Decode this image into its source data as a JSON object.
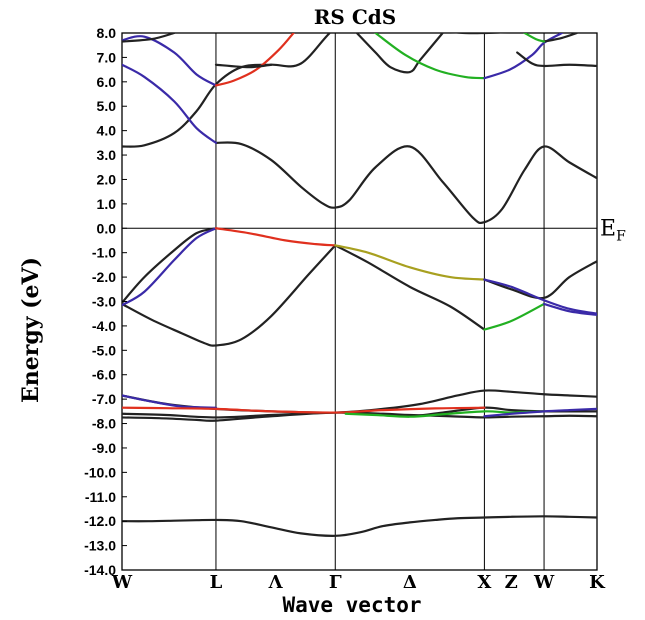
{
  "chart_data": {
    "type": "line",
    "title": "RS  CdS",
    "xlabel": "Wave vector",
    "ylabel": "Energy (eV)",
    "ylim": [
      -14.0,
      8.0
    ],
    "yticks": [
      8.0,
      7.0,
      6.0,
      5.0,
      4.0,
      3.0,
      2.0,
      1.0,
      0.0,
      -1.0,
      -2.0,
      -3.0,
      -4.0,
      -5.0,
      -6.0,
      -7.0,
      -8.0,
      -9.0,
      -10.0,
      -11.0,
      -12.0,
      -13.0,
      -14.0
    ],
    "ytick_labels": [
      "8.0",
      "7.0",
      "6.0",
      "5.0",
      "4.0",
      "3.0",
      "2.0",
      "1.0",
      "0.0",
      "-1.0",
      "-2.0",
      "-3.0",
      "-4.0",
      "-5.0",
      "-6.0",
      "-7.0",
      "-8.0",
      "-9.0",
      "-10.0",
      "-11.0",
      "-12.0",
      "-13.0",
      "-14.0"
    ],
    "xlim": [
      0,
      6.37
    ],
    "kpoints": [
      {
        "label": "W",
        "x": 0.0
      },
      {
        "label": "L",
        "x": 1.26,
        "line": true
      },
      {
        "label": "Λ",
        "x": 2.06
      },
      {
        "label": "Γ",
        "x": 2.86,
        "line": true
      },
      {
        "label": "Δ",
        "x": 3.86
      },
      {
        "label": "X",
        "x": 4.86,
        "line": true
      },
      {
        "label": "Z",
        "x": 5.22
      },
      {
        "label": "W",
        "x": 5.66,
        "line": true
      },
      {
        "label": "K",
        "x": 6.37
      }
    ],
    "fermi_level": 0.0,
    "fermi_label": {
      "main": "E",
      "sub": "F"
    },
    "grid": false,
    "colors": {
      "black": "#222222",
      "blue": "#3a2aa8",
      "red": "#e0301e",
      "green": "#22b022",
      "olive": "#a8a020"
    },
    "series": [
      {
        "color": "black",
        "x": [
          0,
          0.35,
          0.7,
          1.0,
          1.26,
          1.6,
          2.0,
          2.4,
          2.86,
          3.2,
          3.5,
          3.86,
          4.2,
          4.5,
          4.86,
          5.22,
          5.66,
          6.0,
          6.37
        ],
        "y": [
          -12.0,
          -12.0,
          -11.98,
          -11.96,
          -11.95,
          -12.0,
          -12.25,
          -12.5,
          -12.6,
          -12.45,
          -12.2,
          -12.05,
          -11.95,
          -11.88,
          -11.85,
          -11.82,
          -11.8,
          -11.82,
          -11.85
        ]
      },
      {
        "color": "black",
        "x": [
          0,
          0.5,
          1.0,
          1.26,
          2.0,
          2.86,
          3.5,
          3.86,
          4.4,
          4.86,
          5.22,
          5.66,
          6.0,
          6.37
        ],
        "y": [
          -7.75,
          -7.78,
          -7.85,
          -7.88,
          -7.7,
          -7.55,
          -7.6,
          -7.65,
          -7.7,
          -7.75,
          -7.72,
          -7.7,
          -7.68,
          -7.7
        ]
      },
      {
        "color": "black",
        "x": [
          0,
          0.6,
          1.26,
          2.0,
          2.86,
          3.5,
          4.0,
          4.5,
          4.86,
          5.22,
          5.66,
          6.0,
          6.37
        ],
        "y": [
          -6.85,
          -7.2,
          -7.4,
          -7.5,
          -7.55,
          -7.4,
          -7.2,
          -6.85,
          -6.65,
          -6.7,
          -6.8,
          -6.85,
          -6.9
        ]
      },
      {
        "color": "black",
        "x": [
          0,
          0.6,
          1.26,
          2.0,
          2.86,
          3.5,
          3.86,
          4.3,
          4.86,
          5.22,
          5.66,
          6.0,
          6.37
        ],
        "y": [
          -7.6,
          -7.65,
          -7.75,
          -7.65,
          -7.55,
          -7.62,
          -7.7,
          -7.55,
          -7.35,
          -7.45,
          -7.5,
          -7.5,
          -7.5
        ]
      },
      {
        "color": "blue",
        "x": [
          0,
          0.4,
          0.8,
          1.26
        ],
        "y": [
          -6.85,
          -7.1,
          -7.3,
          -7.35
        ]
      },
      {
        "color": "red",
        "x": [
          0,
          0.6,
          1.26,
          2.0,
          2.86,
          3.5,
          4.2,
          4.86
        ],
        "y": [
          -7.35,
          -7.37,
          -7.4,
          -7.5,
          -7.55,
          -7.45,
          -7.38,
          -7.35
        ]
      },
      {
        "color": "green",
        "x": [
          3.0,
          3.4,
          3.86,
          4.3,
          4.86,
          5.22,
          5.66
        ],
        "y": [
          -7.6,
          -7.65,
          -7.72,
          -7.62,
          -7.5,
          -7.55,
          -7.5
        ]
      },
      {
        "color": "blue",
        "x": [
          4.86,
          5.22,
          5.66,
          6.0,
          6.37
        ],
        "y": [
          -7.7,
          -7.6,
          -7.5,
          -7.45,
          -7.4
        ]
      },
      {
        "color": "black",
        "x": [
          0,
          0.4,
          0.8,
          1.1,
          1.26,
          1.6,
          2.0,
          2.5,
          2.86
        ],
        "y": [
          -3.1,
          -3.75,
          -4.3,
          -4.7,
          -4.8,
          -4.55,
          -3.6,
          -1.9,
          -0.7
        ]
      },
      {
        "color": "black",
        "x": [
          0,
          0.3,
          0.7,
          1.0,
          1.26
        ],
        "y": [
          -3.05,
          -2.0,
          -0.9,
          -0.2,
          0.0
        ]
      },
      {
        "color": "blue",
        "x": [
          0,
          0.3,
          0.7,
          1.0,
          1.26
        ],
        "y": [
          -3.15,
          -2.6,
          -1.3,
          -0.4,
          0.0
        ]
      },
      {
        "color": "red",
        "x": [
          1.26,
          1.7,
          2.2,
          2.6,
          2.86
        ],
        "y": [
          0.0,
          -0.2,
          -0.5,
          -0.65,
          -0.7
        ]
      },
      {
        "color": "black",
        "x": [
          2.86,
          3.3,
          3.86,
          4.4,
          4.86
        ],
        "y": [
          -0.7,
          -1.4,
          -2.4,
          -3.2,
          -4.15
        ]
      },
      {
        "color": "olive",
        "x": [
          2.86,
          3.3,
          3.86,
          4.4,
          4.86
        ],
        "y": [
          -0.7,
          -1.0,
          -1.6,
          -2.0,
          -2.1
        ]
      },
      {
        "color": "green",
        "x": [
          4.86,
          5.22,
          5.66
        ],
        "y": [
          -4.15,
          -3.8,
          -3.1
        ]
      },
      {
        "color": "black",
        "x": [
          4.86,
          5.22,
          5.66,
          6.0,
          6.37
        ],
        "y": [
          -2.1,
          -2.5,
          -2.85,
          -2.0,
          -1.35
        ]
      },
      {
        "color": "blue",
        "x": [
          4.86,
          5.22,
          5.66,
          6.0,
          6.37
        ],
        "y": [
          -2.1,
          -2.4,
          -2.95,
          -3.3,
          -3.5
        ]
      },
      {
        "color": "blue",
        "x": [
          5.66,
          6.0,
          6.37
        ],
        "y": [
          -3.1,
          -3.4,
          -3.55
        ]
      },
      {
        "color": "black",
        "x": [
          0,
          0.3,
          0.7,
          1.0,
          1.26,
          1.6,
          2.0,
          2.4,
          2.86,
          3.2,
          3.5,
          3.86,
          4.2,
          4.6,
          4.86,
          5.22,
          5.66,
          6.0,
          6.37
        ],
        "y": [
          3.35,
          3.4,
          3.9,
          4.8,
          5.9,
          6.6,
          6.7,
          6.75,
          8.2,
          8.3,
          8.3,
          8.2,
          8.1,
          8.0,
          8.0,
          8.05,
          8.2,
          8.2,
          8.2
        ]
      },
      {
        "color": "black",
        "x": [
          1.26,
          1.6,
          2.0,
          2.4,
          2.7,
          2.86,
          3.05,
          3.4,
          3.86,
          4.3,
          4.7,
          4.86,
          5.1,
          5.4,
          5.66,
          6.0,
          6.37
        ],
        "y": [
          3.5,
          3.45,
          2.8,
          1.7,
          1.0,
          0.85,
          1.15,
          2.5,
          3.35,
          1.9,
          0.45,
          0.25,
          0.8,
          2.4,
          3.35,
          2.7,
          2.05
        ]
      },
      {
        "color": "blue",
        "x": [
          0,
          0.3,
          0.7,
          1.0,
          1.26
        ],
        "y": [
          6.7,
          6.2,
          5.2,
          4.1,
          3.5
        ]
      },
      {
        "color": "blue",
        "x": [
          0,
          0.3,
          0.7,
          1.0,
          1.26
        ],
        "y": [
          7.7,
          7.85,
          7.2,
          6.3,
          5.85
        ]
      },
      {
        "color": "black",
        "x": [
          0,
          0.4,
          0.7
        ],
        "y": [
          7.65,
          7.75,
          8.0
        ]
      },
      {
        "color": "red",
        "x": [
          1.26,
          1.5,
          1.8,
          2.1,
          2.3
        ],
        "y": [
          5.85,
          6.05,
          6.5,
          7.3,
          8.0
        ]
      },
      {
        "color": "black",
        "x": [
          1.26,
          1.7,
          2.0
        ],
        "y": [
          6.7,
          6.6,
          6.7
        ]
      },
      {
        "color": "black",
        "x": [
          3.15,
          3.4,
          3.6,
          3.86,
          4.0,
          4.3
        ],
        "y": [
          8.0,
          7.2,
          6.6,
          6.4,
          6.9,
          8.0
        ]
      },
      {
        "color": "green",
        "x": [
          3.4,
          3.8,
          4.2,
          4.6,
          4.86
        ],
        "y": [
          8.0,
          7.1,
          6.5,
          6.2,
          6.15
        ]
      },
      {
        "color": "blue",
        "x": [
          4.86,
          5.2,
          5.5,
          5.66,
          5.9
        ],
        "y": [
          6.15,
          6.5,
          7.1,
          7.6,
          8.0
        ]
      },
      {
        "color": "black",
        "x": [
          5.3,
          5.5,
          5.66,
          6.0,
          6.37
        ],
        "y": [
          7.2,
          6.75,
          6.65,
          6.7,
          6.65
        ]
      },
      {
        "color": "black",
        "x": [
          5.66,
          5.9,
          6.1
        ],
        "y": [
          7.65,
          7.8,
          8.0
        ]
      },
      {
        "color": "green",
        "x": [
          5.4,
          5.55,
          5.66
        ],
        "y": [
          8.0,
          7.75,
          7.65
        ]
      }
    ]
  }
}
